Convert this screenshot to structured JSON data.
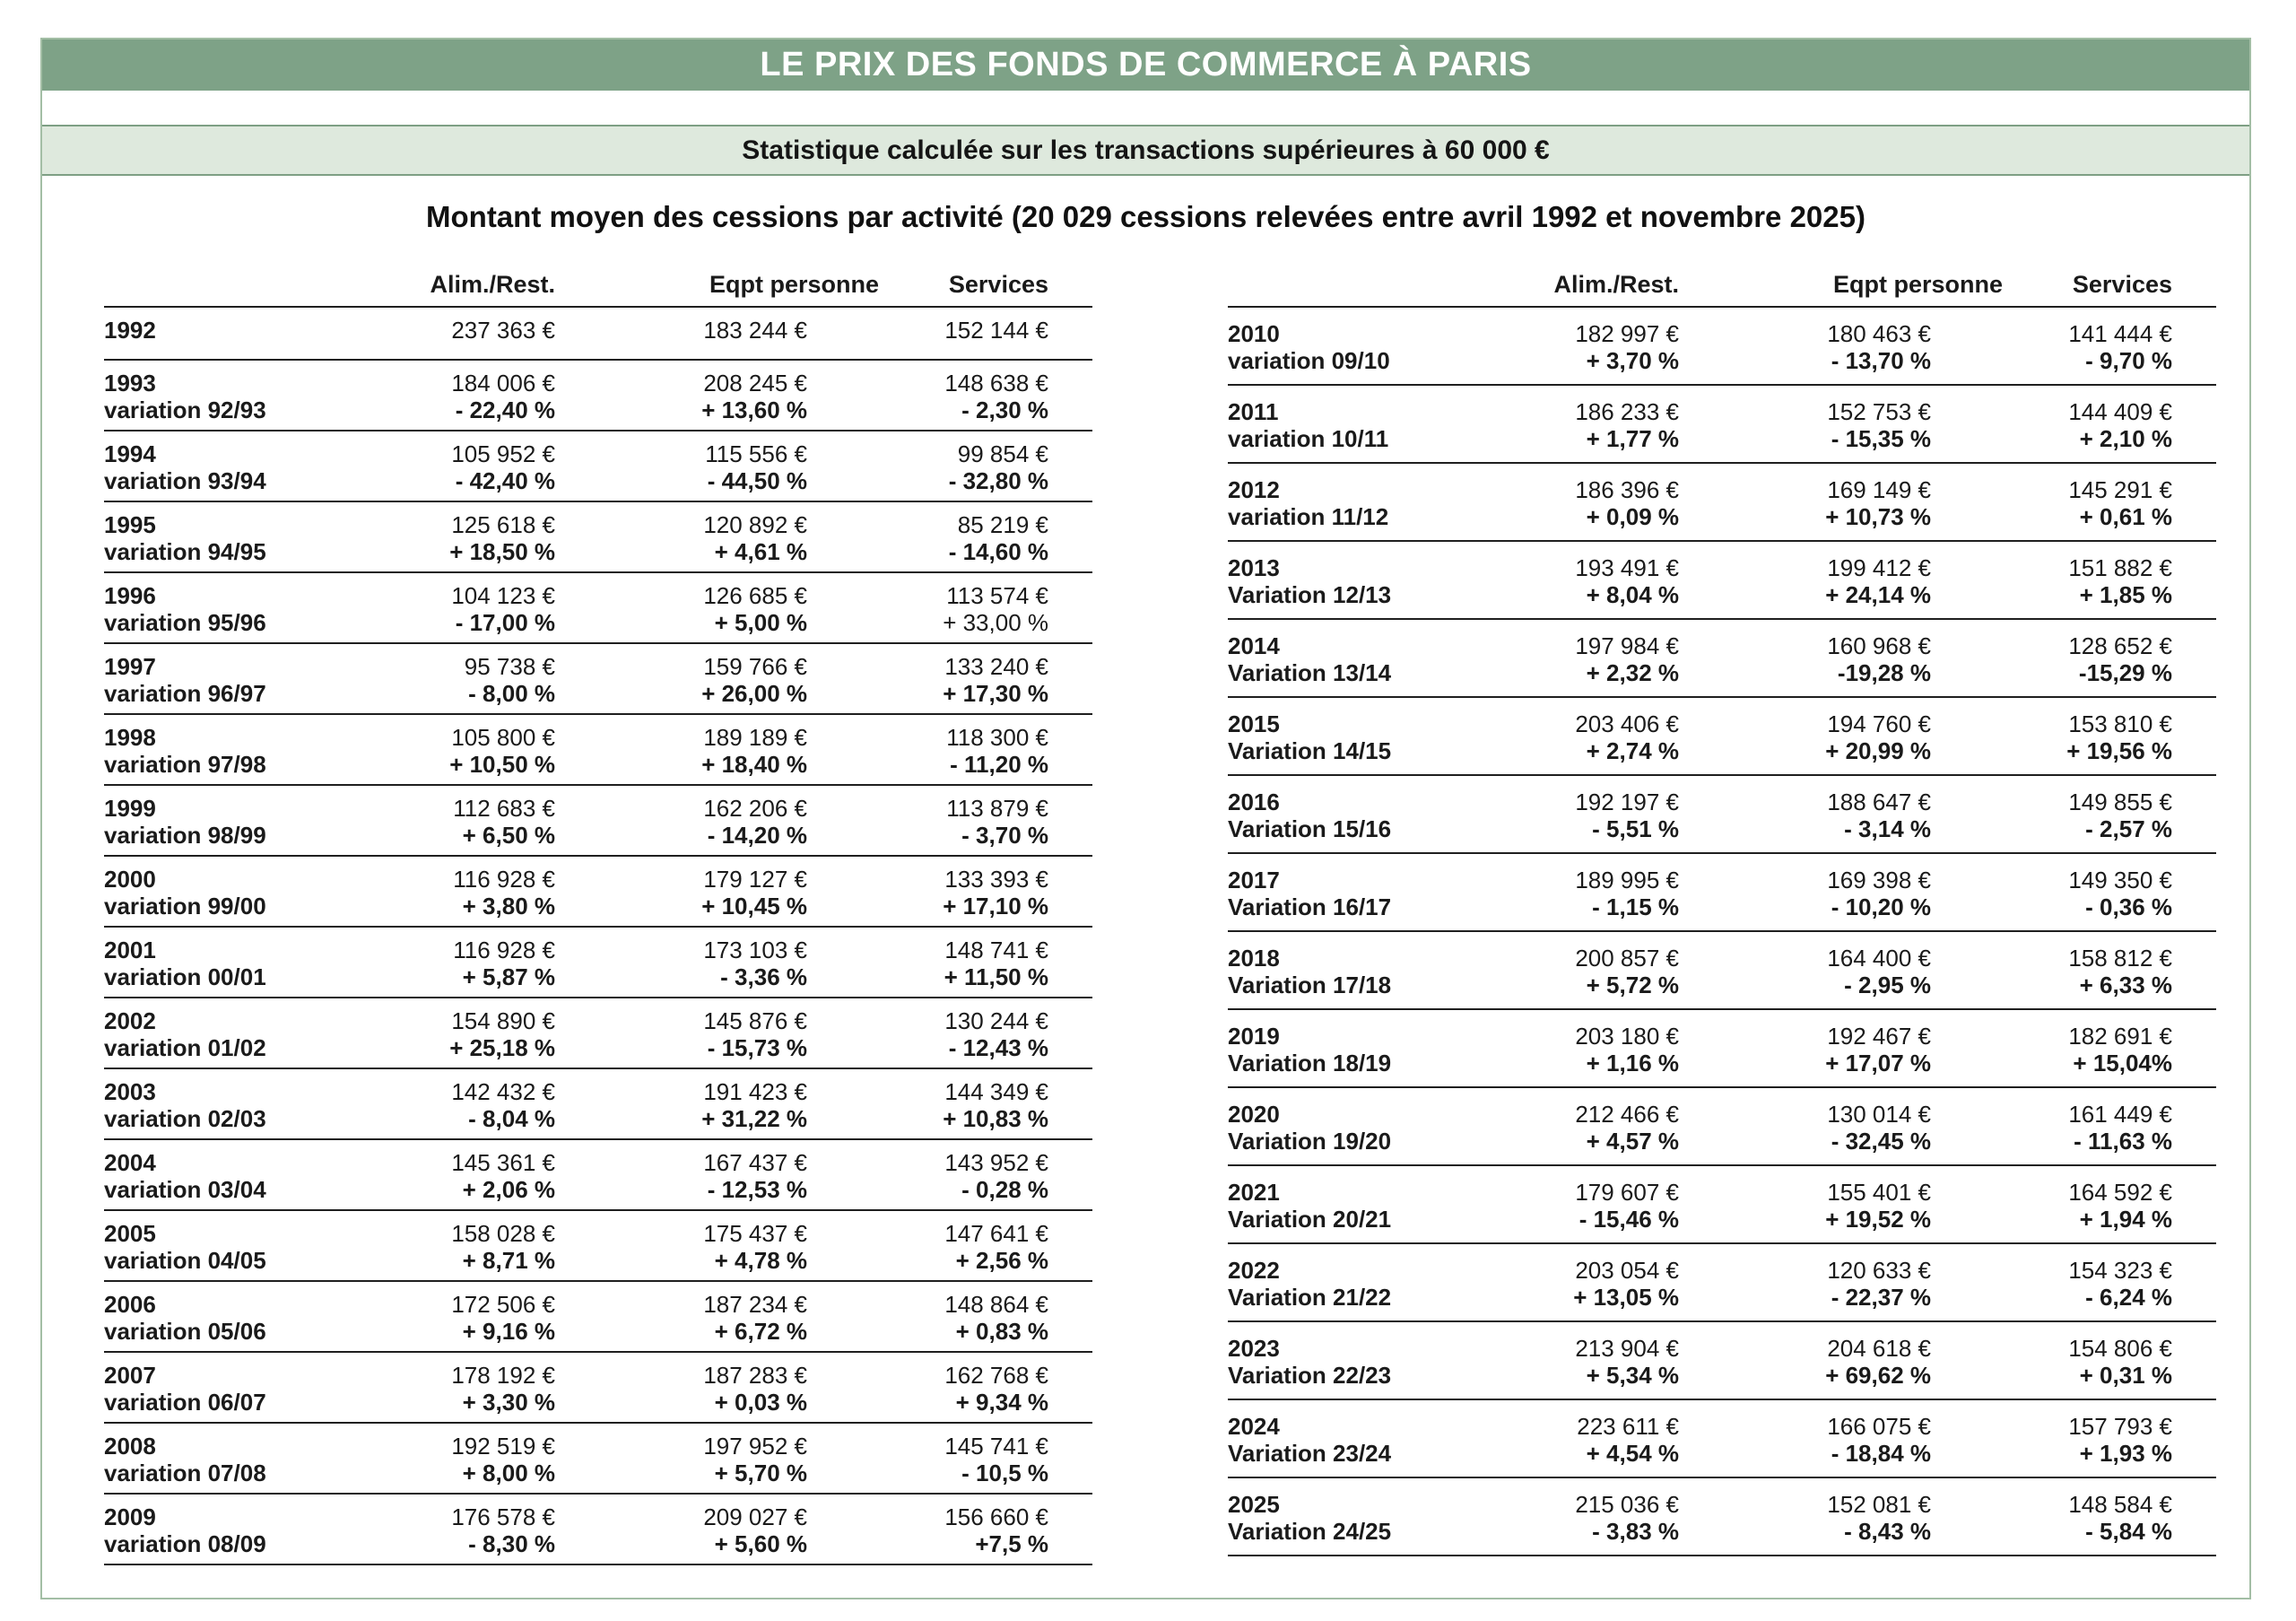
{
  "page": {
    "title": "LE PRIX DES FONDS DE COMMERCE À PARIS",
    "subtitle": "Statistique calculée sur les transactions supérieures à 60 000 €",
    "heading": "Montant moyen des cessions par activité (20 029 cessions relevées entre avril 1992 et novembre 2025)"
  },
  "colors": {
    "header_bar_bg": "#7ea287",
    "header_bar_text": "#ffffff",
    "subtitle_bar_bg": "#dee9dd",
    "subtitle_bar_border": "#7e9f84",
    "page_border": "#a3bea5",
    "rule": "#1f1f1f"
  },
  "left_table": {
    "columns": [
      "Alim./Rest.",
      "Eqpt personne",
      "Services"
    ],
    "first_row": {
      "year": "1992",
      "values": [
        "237 363 €",
        "183 244 €",
        "152 144 €"
      ]
    },
    "rows": [
      {
        "year": "1993",
        "var_label": "variation 92/93",
        "values": [
          "184 006 €",
          "208 245 €",
          "148 638 €"
        ],
        "vars": [
          "- 22,40 %",
          "+ 13,60 %",
          "- 2,30 %"
        ]
      },
      {
        "year": "1994",
        "var_label": "variation 93/94",
        "values": [
          "105 952 €",
          "115 556 €",
          "99 854 €"
        ],
        "vars": [
          "- 42,40 %",
          "- 44,50 %",
          "- 32,80 %"
        ]
      },
      {
        "year": "1995",
        "var_label": "variation 94/95",
        "values": [
          "125 618 €",
          "120 892 €",
          "85 219 €"
        ],
        "vars": [
          "+ 18,50 %",
          "+ 4,61 %",
          "- 14,60 %"
        ]
      },
      {
        "year": "1996",
        "var_label": "variation 95/96",
        "values": [
          "104 123 €",
          "126 685 €",
          "113 574 €"
        ],
        "vars": [
          "- 17,00 %",
          "+ 5,00 %",
          "+ 33,00 %"
        ],
        "vars_normal": [
          2
        ]
      },
      {
        "year": "1997",
        "var_label": "variation 96/97",
        "values": [
          "95 738 €",
          "159 766 €",
          "133 240 €"
        ],
        "vars": [
          "- 8,00 %",
          "+ 26,00 %",
          "+ 17,30 %"
        ]
      },
      {
        "year": "1998",
        "var_label": "variation 97/98",
        "values": [
          "105 800 €",
          "189 189 €",
          "118 300 €"
        ],
        "vars": [
          "+ 10,50 %",
          "+ 18,40 %",
          "- 11,20 %"
        ]
      },
      {
        "year": "1999",
        "var_label": "variation 98/99",
        "values": [
          "112 683 €",
          "162 206 €",
          "113 879 €"
        ],
        "vars": [
          "+ 6,50 %",
          "- 14,20 %",
          "- 3,70 %"
        ]
      },
      {
        "year": "2000",
        "var_label": "variation 99/00",
        "values": [
          "116 928 €",
          "179 127 €",
          "133 393 €"
        ],
        "vars": [
          "+ 3,80 %",
          "+ 10,45 %",
          "+ 17,10 %"
        ]
      },
      {
        "year": "2001",
        "var_label": "variation 00/01",
        "values": [
          "116 928 €",
          "173 103 €",
          "148 741 €"
        ],
        "vars": [
          "+ 5,87 %",
          "- 3,36 %",
          "+ 11,50 %"
        ]
      },
      {
        "year": "2002",
        "var_label": "variation 01/02",
        "values": [
          "154 890 €",
          "145 876 €",
          "130 244 €"
        ],
        "vars": [
          "+ 25,18 %",
          "- 15,73 %",
          "- 12,43 %"
        ]
      },
      {
        "year": "2003",
        "var_label": "variation 02/03",
        "values": [
          "142 432 €",
          "191 423 €",
          "144 349 €"
        ],
        "vars": [
          "- 8,04 %",
          "+ 31,22 %",
          "+ 10,83 %"
        ]
      },
      {
        "year": "2004",
        "var_label": "variation 03/04",
        "values": [
          "145 361 €",
          "167 437 €",
          "143 952 €"
        ],
        "vars": [
          "+ 2,06 %",
          "- 12,53 %",
          "- 0,28 %"
        ]
      },
      {
        "year": "2005",
        "var_label": "variation 04/05",
        "values": [
          "158 028 €",
          "175 437 €",
          "147 641 €"
        ],
        "vars": [
          "+ 8,71 %",
          "+ 4,78 %",
          "+ 2,56 %"
        ]
      },
      {
        "year": "2006",
        "var_label": "variation 05/06",
        "values": [
          "172 506 €",
          "187 234 €",
          "148 864 €"
        ],
        "vars": [
          "+ 9,16 %",
          "+ 6,72 %",
          "+ 0,83 %"
        ]
      },
      {
        "year": "2007",
        "var_label": "variation 06/07",
        "values": [
          "178 192 €",
          "187 283 €",
          "162 768 €"
        ],
        "vars": [
          "+ 3,30 %",
          "+ 0,03 %",
          "+ 9,34 %"
        ]
      },
      {
        "year": "2008",
        "var_label": "variation 07/08",
        "values": [
          "192 519 €",
          "197 952 €",
          "145 741 €"
        ],
        "vars": [
          "+ 8,00 %",
          "+ 5,70 %",
          "- 10,5 %"
        ]
      },
      {
        "year": "2009",
        "var_label": "variation 08/09",
        "values": [
          "176 578 €",
          "209 027 €",
          "156 660 €"
        ],
        "vars": [
          "- 8,30 %",
          "+ 5,60 %",
          "+7,5 %"
        ]
      }
    ]
  },
  "right_table": {
    "columns": [
      "Alim./Rest.",
      "Eqpt personne",
      "Services"
    ],
    "rows": [
      {
        "year": "2010",
        "var_label": "variation 09/10",
        "values": [
          "182 997 €",
          "180 463 €",
          "141 444 €"
        ],
        "vars": [
          "+ 3,70 %",
          "- 13,70 %",
          "- 9,70 %"
        ]
      },
      {
        "year": "2011",
        "var_label": "variation 10/11",
        "values": [
          "186 233 €",
          "152 753 €",
          "144 409 €"
        ],
        "vars": [
          "+ 1,77 %",
          "- 15,35 %",
          "+ 2,10 %"
        ]
      },
      {
        "year": "2012",
        "var_label": "variation 11/12",
        "values": [
          "186 396 €",
          "169 149 €",
          "145 291 €"
        ],
        "vars": [
          "+ 0,09 %",
          "+ 10,73 %",
          "+ 0,61 %"
        ]
      },
      {
        "year": "2013",
        "var_label": "Variation 12/13",
        "values": [
          "193 491 €",
          "199 412 €",
          "151 882 €"
        ],
        "vars": [
          "+ 8,04 %",
          "+ 24,14 %",
          "+ 1,85 %"
        ]
      },
      {
        "year": "2014",
        "var_label": "Variation 13/14",
        "values": [
          "197 984 €",
          "160 968 €",
          "128 652 €"
        ],
        "vars": [
          "+ 2,32 %",
          "-19,28 %",
          "-15,29 %"
        ]
      },
      {
        "year": "2015",
        "var_label": "Variation 14/15",
        "values": [
          "203 406 €",
          "194 760 €",
          "153 810 €"
        ],
        "vars": [
          "+ 2,74 %",
          "+ 20,99 %",
          "+ 19,56 %"
        ]
      },
      {
        "year": "2016",
        "var_label": "Variation 15/16",
        "values": [
          "192 197 €",
          "188 647 €",
          "149 855 €"
        ],
        "vars": [
          "- 5,51 %",
          "- 3,14 %",
          "- 2,57 %"
        ]
      },
      {
        "year": "2017",
        "var_label": "Variation 16/17",
        "values": [
          "189 995 €",
          "169 398 €",
          "149 350 €"
        ],
        "vars": [
          "- 1,15 %",
          "- 10,20 %",
          "- 0,36 %"
        ]
      },
      {
        "year": "2018",
        "var_label": "Variation 17/18",
        "values": [
          "200 857 €",
          "164 400 €",
          "158 812 €"
        ],
        "vars": [
          "+ 5,72 %",
          "- 2,95 %",
          "+ 6,33 %"
        ]
      },
      {
        "year": "2019",
        "var_label": "Variation 18/19",
        "values": [
          "203 180 €",
          "192 467 €",
          "182 691 €"
        ],
        "vars": [
          "+ 1,16 %",
          "+ 17,07 %",
          "+ 15,04%"
        ]
      },
      {
        "year": "2020",
        "var_label": "Variation 19/20",
        "values": [
          "212 466 €",
          "130 014 €",
          "161 449 €"
        ],
        "vars": [
          "+ 4,57 %",
          "- 32,45 %",
          "- 11,63 %"
        ]
      },
      {
        "year": "2021",
        "var_label": "Variation 20/21",
        "values": [
          "179 607 €",
          "155 401 €",
          "164 592 €"
        ],
        "vars": [
          "- 15,46 %",
          "+ 19,52 %",
          "+ 1,94 %"
        ]
      },
      {
        "year": "2022",
        "var_label": "Variation 21/22",
        "values": [
          "203 054 €",
          "120 633 €",
          "154 323 €"
        ],
        "vars": [
          "+ 13,05 %",
          "- 22,37 %",
          "- 6,24 %"
        ]
      },
      {
        "year": "2023",
        "var_label": "Variation 22/23",
        "values": [
          "213 904 €",
          "204 618 €",
          "154 806 €"
        ],
        "vars": [
          "+ 5,34 %",
          "+ 69,62 %",
          "+ 0,31 %"
        ]
      },
      {
        "year": "2024",
        "var_label": "Variation 23/24",
        "values": [
          "223 611 €",
          "166 075 €",
          "157 793 €"
        ],
        "vars": [
          "+ 4,54 %",
          "- 18,84 %",
          "+ 1,93 %"
        ]
      },
      {
        "year": "2025",
        "var_label": "Variation 24/25",
        "values": [
          "215 036 €",
          "152 081 €",
          "148 584 €"
        ],
        "vars": [
          "- 3,83 %",
          "- 8,43 %",
          "- 5,84 %"
        ]
      }
    ]
  }
}
